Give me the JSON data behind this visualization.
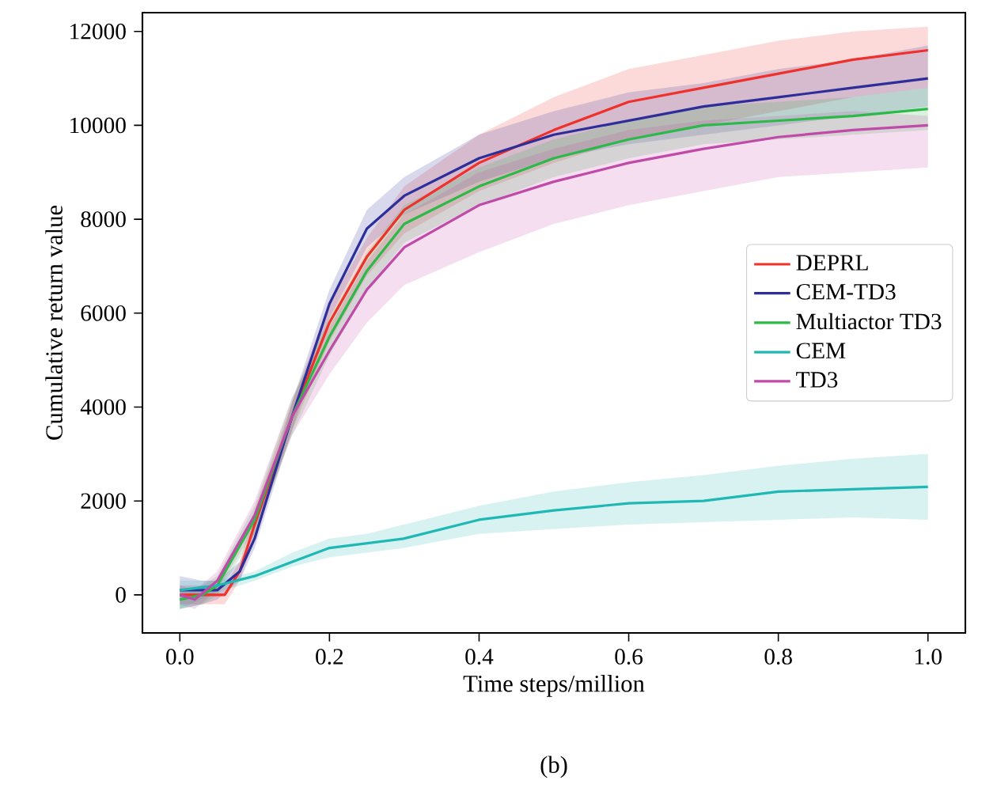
{
  "chart_data": {
    "type": "line",
    "xlabel": "Time steps/million",
    "ylabel": "Cumulative return value",
    "annotations": [
      "(b)"
    ],
    "xlim": [
      -0.05,
      1.05
    ],
    "ylim": [
      -810,
      12400
    ],
    "xticks": [
      {
        "value": 0,
        "label": "0.0"
      },
      0.2,
      0.4,
      0.6,
      0.8,
      {
        "value": 1,
        "label": "1.0"
      }
    ],
    "yticks": [
      0,
      2000,
      4000,
      6000,
      8000,
      10000,
      12000
    ],
    "grid": false,
    "legend": "right",
    "marker": "none",
    "line_style": "solid",
    "series": [
      {
        "name": "DEPRL",
        "color": "#f0302a",
        "x": [
          0,
          0.03,
          0.06,
          0.08,
          0.1,
          0.15,
          0.2,
          0.25,
          0.3,
          0.4,
          0.5,
          0.6,
          0.7,
          0.8,
          0.9,
          1.0
        ],
        "values": [
          0,
          0,
          0,
          500,
          1500,
          3800,
          5800,
          7200,
          8200,
          9200,
          9900,
          10500,
          10800,
          11100,
          11400,
          11600
        ],
        "lower": [
          -200,
          -200,
          -200,
          300,
          1200,
          3500,
          5400,
          6800,
          7700,
          8600,
          9200,
          9700,
          10000,
          10300,
          10600,
          10800
        ],
        "upper": [
          200,
          200,
          200,
          700,
          1800,
          4100,
          6200,
          7600,
          8700,
          9800,
          10600,
          11200,
          11500,
          11800,
          12000,
          12100
        ]
      },
      {
        "name": "CEM-TD3",
        "color": "#2e2e9a",
        "x": [
          0,
          0.03,
          0.05,
          0.08,
          0.1,
          0.15,
          0.2,
          0.25,
          0.3,
          0.4,
          0.5,
          0.6,
          0.7,
          0.8,
          0.9,
          1.0
        ],
        "values": [
          100,
          100,
          100,
          500,
          1200,
          3800,
          6200,
          7800,
          8500,
          9300,
          9800,
          10100,
          10400,
          10600,
          10800,
          11000
        ],
        "lower": [
          -300,
          -200,
          -100,
          300,
          1000,
          3500,
          5900,
          7400,
          8100,
          8800,
          9300,
          9600,
          9800,
          10000,
          10200,
          10400
        ],
        "upper": [
          400,
          300,
          300,
          700,
          1400,
          4100,
          6500,
          8200,
          8900,
          9800,
          10300,
          10700,
          10900,
          11200,
          11400,
          11700
        ]
      },
      {
        "name": "Multiactor TD3",
        "color": "#2db84a",
        "x": [
          0,
          0.03,
          0.05,
          0.1,
          0.15,
          0.2,
          0.25,
          0.3,
          0.4,
          0.5,
          0.6,
          0.7,
          0.8,
          0.9,
          1.0
        ],
        "values": [
          -100,
          0,
          200,
          1600,
          3800,
          5500,
          6900,
          7900,
          8700,
          9300,
          9700,
          10000,
          10100,
          10200,
          10350
        ],
        "lower": [
          -300,
          -200,
          0,
          1300,
          3400,
          5100,
          6500,
          7500,
          8300,
          8900,
          9300,
          9600,
          9700,
          9800,
          9900
        ],
        "upper": [
          100,
          200,
          400,
          1900,
          4200,
          5900,
          7300,
          8300,
          9100,
          9700,
          10100,
          10400,
          10500,
          10600,
          10800
        ]
      },
      {
        "name": "CEM",
        "color": "#1fb8b4",
        "x": [
          0,
          0.05,
          0.1,
          0.15,
          0.2,
          0.25,
          0.3,
          0.4,
          0.5,
          0.6,
          0.7,
          0.8,
          0.9,
          1.0
        ],
        "values": [
          100,
          200,
          400,
          700,
          1000,
          1100,
          1200,
          1600,
          1800,
          1950,
          2000,
          2200,
          2250,
          2300
        ],
        "lower": [
          -300,
          50,
          300,
          600,
          800,
          900,
          1000,
          1300,
          1400,
          1500,
          1550,
          1600,
          1650,
          1600
        ],
        "upper": [
          300,
          300,
          500,
          900,
          1200,
          1300,
          1500,
          1900,
          2200,
          2400,
          2550,
          2750,
          2900,
          3000
        ]
      },
      {
        "name": "TD3",
        "color": "#c04aa8",
        "x": [
          0,
          0.02,
          0.05,
          0.1,
          0.15,
          0.2,
          0.25,
          0.3,
          0.4,
          0.5,
          0.6,
          0.7,
          0.8,
          0.9,
          1.0
        ],
        "values": [
          0,
          -100,
          300,
          1700,
          3800,
          5200,
          6500,
          7400,
          8300,
          8800,
          9200,
          9500,
          9750,
          9900,
          10000
        ],
        "lower": [
          -200,
          -300,
          100,
          1400,
          3400,
          4700,
          5800,
          6600,
          7300,
          7900,
          8300,
          8600,
          8900,
          9000,
          9100
        ],
        "upper": [
          200,
          100,
          500,
          2000,
          4200,
          5700,
          7100,
          8100,
          9000,
          9500,
          9900,
          10100,
          10200,
          10300,
          10200
        ]
      }
    ]
  }
}
